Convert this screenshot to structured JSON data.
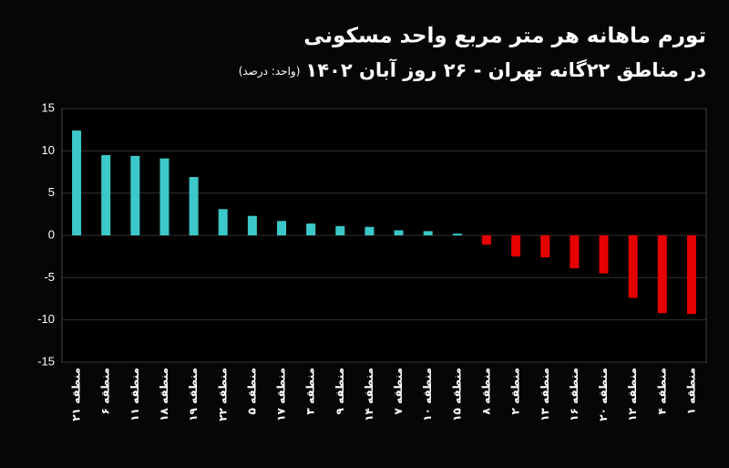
{
  "chart_data": {
    "type": "bar",
    "title": "تورم ماهانه هر متر مربع واحد مسکونی",
    "subtitle": "در مناطق ۲۲گانه تهران - ۲۶ روز آبان ۱۴۰۲",
    "unit": "(واحد: درصد)",
    "categories": [
      "منطقه ۲۱",
      "منطقه ۶",
      "منطقه ۱۱",
      "منطقه ۱۸",
      "منطقه ۱۹",
      "منطقه ۲۲",
      "منطقه ۵",
      "منطقه ۱۷",
      "منطقه ۳",
      "منطقه ۹",
      "منطقه ۱۴",
      "منطقه ۷",
      "منطقه ۱۰",
      "منطقه ۱۵",
      "منطقه ۸",
      "منطقه ۲",
      "منطقه ۱۳",
      "منطقه ۱۶",
      "منطقه ۲۰",
      "منطقه ۱۲",
      "منطقه ۴",
      "منطقه ۱"
    ],
    "values": [
      12.4,
      9.5,
      9.4,
      9.1,
      6.9,
      3.1,
      2.3,
      1.7,
      1.4,
      1.1,
      1.0,
      0.6,
      0.5,
      0.2,
      -1.1,
      -2.5,
      -2.6,
      -3.9,
      -4.5,
      -7.4,
      -9.2,
      -9.3
    ],
    "positive_color": "#3cc8c8",
    "negative_color": "#e60000",
    "ylim": [
      -15,
      15
    ],
    "yticks": [
      -15,
      -10,
      -5,
      0,
      5,
      10,
      15
    ],
    "grid": true
  }
}
